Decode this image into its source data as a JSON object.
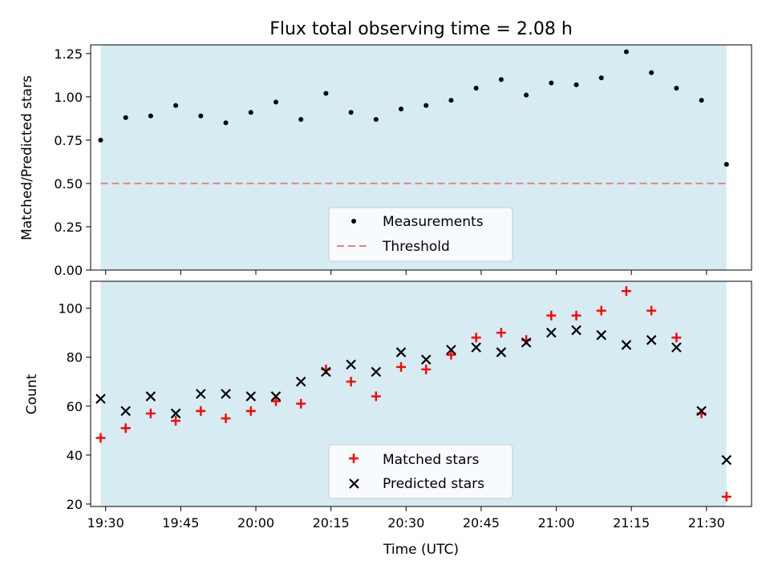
{
  "chart_data": [
    {
      "type": "scatter",
      "title": "Flux total observing time = 2.08 h",
      "xlabel": "",
      "ylabel": "Matched/Predicted stars",
      "xlim": [
        "19:27",
        "21:39"
      ],
      "ylim": [
        0,
        1.3
      ],
      "yticks": [
        "0.00",
        "0.25",
        "0.50",
        "0.75",
        "1.00",
        "1.25"
      ],
      "shaded_span": [
        "19:29",
        "21:34"
      ],
      "shade_color": "#add8e6",
      "x": [
        "19:29",
        "19:34",
        "19:39",
        "19:44",
        "19:49",
        "19:54",
        "19:59",
        "20:04",
        "20:09",
        "20:14",
        "20:19",
        "20:24",
        "20:29",
        "20:34",
        "20:39",
        "20:44",
        "20:49",
        "20:54",
        "20:59",
        "21:04",
        "21:09",
        "21:14",
        "21:19",
        "21:24",
        "21:29",
        "21:34"
      ],
      "series": [
        {
          "name": "Measurements",
          "marker": "dot",
          "color": "#000000",
          "values": [
            0.75,
            0.88,
            0.89,
            0.95,
            0.89,
            0.85,
            0.91,
            0.97,
            0.87,
            1.02,
            0.91,
            0.87,
            0.93,
            0.95,
            0.98,
            1.05,
            1.1,
            1.01,
            1.08,
            1.07,
            1.11,
            1.26,
            1.14,
            1.05,
            0.98,
            0.61
          ]
        }
      ],
      "threshold": {
        "name": "Threshold",
        "value": 0.5,
        "color": "#f08080",
        "style": "dashed"
      },
      "legend": "bottom-center"
    },
    {
      "type": "scatter",
      "title": "",
      "xlabel": "Time (UTC)",
      "ylabel": "Count",
      "xlim": [
        "19:27",
        "21:39"
      ],
      "ylim": [
        19,
        111
      ],
      "yticks": [
        "20",
        "40",
        "60",
        "80",
        "100"
      ],
      "xticks": [
        "19:30",
        "19:45",
        "20:00",
        "20:15",
        "20:30",
        "20:45",
        "21:00",
        "21:15",
        "21:30"
      ],
      "shaded_span": [
        "19:29",
        "21:34"
      ],
      "shade_color": "#add8e6",
      "x": [
        "19:29",
        "19:34",
        "19:39",
        "19:44",
        "19:49",
        "19:54",
        "19:59",
        "20:04",
        "20:09",
        "20:14",
        "20:19",
        "20:24",
        "20:29",
        "20:34",
        "20:39",
        "20:44",
        "20:49",
        "20:54",
        "20:59",
        "21:04",
        "21:09",
        "21:14",
        "21:19",
        "21:24",
        "21:29",
        "21:34"
      ],
      "series": [
        {
          "name": "Matched stars",
          "marker": "plus",
          "color": "#ff0000",
          "values": [
            47,
            51,
            57,
            54,
            58,
            55,
            58,
            62,
            61,
            75,
            70,
            64,
            76,
            75,
            81,
            88,
            90,
            87,
            97,
            97,
            99,
            107,
            99,
            88,
            57,
            23
          ]
        },
        {
          "name": "Predicted stars",
          "marker": "x",
          "color": "#000000",
          "values": [
            63,
            58,
            64,
            57,
            65,
            65,
            64,
            64,
            70,
            74,
            77,
            74,
            82,
            79,
            83,
            84,
            82,
            86,
            90,
            91,
            89,
            85,
            87,
            84,
            58,
            38
          ]
        }
      ],
      "legend": "bottom-center"
    }
  ]
}
